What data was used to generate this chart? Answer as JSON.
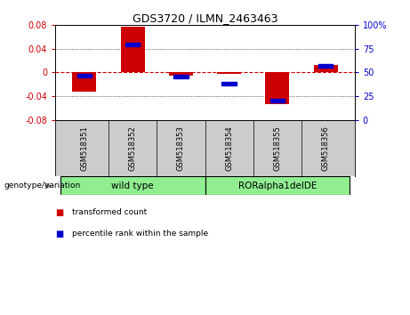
{
  "title": "GDS3720 / ILMN_2463463",
  "samples": [
    "GSM518351",
    "GSM518352",
    "GSM518353",
    "GSM518354",
    "GSM518355",
    "GSM518356"
  ],
  "transformed_counts": [
    -0.033,
    0.077,
    -0.005,
    -0.002,
    -0.054,
    0.013
  ],
  "percentile_ranks": [
    47,
    80,
    46,
    38,
    20,
    57
  ],
  "ylim_left": [
    -0.08,
    0.08
  ],
  "ylim_right": [
    0,
    100
  ],
  "yticks_left": [
    -0.08,
    -0.04,
    0,
    0.04,
    0.08
  ],
  "yticks_right": [
    0,
    25,
    50,
    75,
    100
  ],
  "bar_color_red": "#CC0000",
  "bar_color_blue": "#0000CC",
  "zero_line_color": "#CC0000",
  "bg_plot": "#ffffff",
  "bg_xlabel": "#cccccc",
  "group_color_wt": "#90EE90",
  "group_color_mut": "#90EE90",
  "legend_red_label": "transformed count",
  "legend_blue_label": "percentile rank within the sample",
  "genotype_label": "genotype/variation"
}
